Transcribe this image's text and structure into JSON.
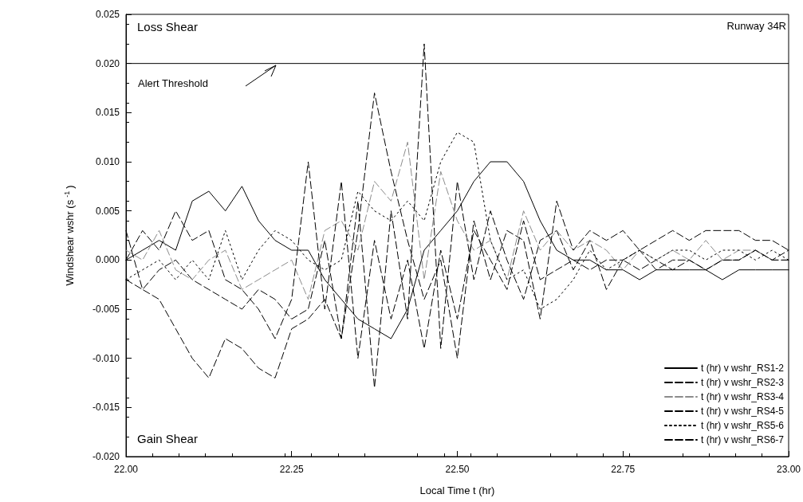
{
  "chart_data": {
    "type": "line",
    "xlabel": "Local Time t (hr)",
    "ylabel": "Windshear wshr (s$^{-1}$)",
    "x": [
      22.0,
      22.025,
      22.05,
      22.075,
      22.1,
      22.125,
      22.15,
      22.175,
      22.2,
      22.225,
      22.25,
      22.275,
      22.3,
      22.325,
      22.35,
      22.375,
      22.4,
      22.425,
      22.45,
      22.475,
      22.5,
      22.525,
      22.55,
      22.575,
      22.6,
      22.625,
      22.65,
      22.675,
      22.7,
      22.725,
      22.75,
      22.775,
      22.8,
      22.825,
      22.85,
      22.875,
      22.9,
      22.925,
      22.95,
      22.975,
      23.0
    ],
    "series": [
      {
        "name": "t (hr) v wshr_RS1-2",
        "color": "#000000",
        "line_style": "solid",
        "values": [
          0.0,
          0.001,
          0.002,
          0.001,
          0.006,
          0.007,
          0.005,
          0.0075,
          0.004,
          0.002,
          0.001,
          0.001,
          -0.002,
          -0.004,
          -0.006,
          -0.007,
          -0.008,
          -0.005,
          0.001,
          0.003,
          0.005,
          0.008,
          0.01,
          0.01,
          0.008,
          0.004,
          0.001,
          0.0,
          0.0,
          -0.001,
          -0.001,
          -0.002,
          -0.001,
          -0.001,
          -0.001,
          -0.001,
          -0.002,
          -0.001,
          -0.001,
          -0.001,
          -0.001
        ]
      },
      {
        "name": "t (hr) v wshr_RS2-3",
        "color": "#000000",
        "line_style": "dashed",
        "values": [
          -0.002,
          -0.003,
          -0.001,
          0.0,
          -0.002,
          -0.003,
          -0.004,
          -0.005,
          -0.003,
          -0.004,
          -0.006,
          -0.005,
          0.002,
          -0.008,
          0.006,
          -0.013,
          0.005,
          -0.006,
          0.022,
          -0.009,
          0.008,
          -0.002,
          0.005,
          0.0,
          -0.004,
          0.002,
          0.003,
          -0.001,
          0.002,
          -0.003,
          0.0,
          -0.001,
          0.0,
          -0.001,
          0.0,
          -0.001,
          0.0,
          0.0,
          0.001,
          0.0,
          0.001
        ]
      },
      {
        "name": "t (hr) v wshr_RS3-4",
        "color": "#8c8c8c",
        "line_style": "dashed",
        "values": [
          0.001,
          0.0,
          0.003,
          -0.001,
          -0.002,
          0.0,
          0.001,
          -0.003,
          -0.002,
          -0.001,
          0.0,
          -0.004,
          0.003,
          0.004,
          0.001,
          0.008,
          0.006,
          0.012,
          -0.002,
          0.009,
          0.004,
          0.001,
          0.002,
          -0.002,
          0.005,
          0.001,
          0.003,
          0.001,
          0.002,
          0.001,
          -0.001,
          0.001,
          0.0,
          0.001,
          0.0,
          0.002,
          0.0,
          0.001,
          0.001,
          0.0,
          0.0
        ]
      },
      {
        "name": "t (hr) v wshr_RS4-5",
        "color": "#000000",
        "line_style": "dashed",
        "values": [
          0.003,
          -0.003,
          -0.004,
          -0.007,
          -0.01,
          -0.012,
          -0.008,
          -0.009,
          -0.011,
          -0.012,
          -0.007,
          -0.006,
          -0.004,
          -0.008,
          0.003,
          0.017,
          0.009,
          0.002,
          -0.004,
          0.0,
          -0.01,
          0.004,
          -0.002,
          0.003,
          0.002,
          -0.006,
          0.006,
          0.001,
          0.003,
          0.002,
          0.003,
          0.001,
          0.002,
          0.003,
          0.002,
          0.003,
          0.003,
          0.003,
          0.002,
          0.002,
          0.001
        ]
      },
      {
        "name": "t (hr) v wshr_RS5-6",
        "color": "#000000",
        "line_style": "dotted",
        "values": [
          -0.002,
          -0.001,
          0.0,
          -0.002,
          0.0,
          -0.002,
          0.003,
          -0.002,
          0.001,
          0.003,
          0.002,
          0.0,
          -0.001,
          0.0,
          0.007,
          0.005,
          0.004,
          0.006,
          0.004,
          0.01,
          0.013,
          0.012,
          0.002,
          -0.002,
          -0.001,
          -0.005,
          -0.004,
          -0.002,
          0.001,
          -0.001,
          0.0,
          0.001,
          0.0,
          0.001,
          0.001,
          0.0,
          0.001,
          0.001,
          0.0,
          0.001,
          0.0
        ]
      },
      {
        "name": "t (hr) v wshr_RS6-7",
        "color": "#000000",
        "line_style": "dashed",
        "values": [
          0.0,
          0.003,
          0.001,
          0.005,
          0.002,
          0.003,
          -0.002,
          -0.003,
          -0.005,
          -0.008,
          -0.004,
          0.01,
          -0.005,
          0.008,
          -0.01,
          0.002,
          -0.006,
          0.0,
          -0.009,
          0.001,
          -0.006,
          0.003,
          0.0,
          -0.003,
          0.004,
          -0.002,
          -0.001,
          0.0,
          -0.001,
          0.0,
          0.0,
          0.001,
          -0.001,
          0.0,
          0.0,
          -0.001,
          0.0,
          0.0,
          0.001,
          0.0,
          0.0
        ]
      }
    ],
    "xlim": [
      22.0,
      23.0
    ],
    "xticks": [
      {
        "value": 22.0,
        "label": "22.00"
      },
      {
        "value": 22.25,
        "label": "22.25"
      },
      {
        "value": 22.5,
        "label": "22.50"
      },
      {
        "value": 22.75,
        "label": "22.75"
      },
      {
        "value": 23.0,
        "label": "23.00"
      }
    ],
    "ylim": [
      -0.02,
      0.025
    ],
    "yticks": [
      {
        "value": -0.02,
        "label": "-0.020"
      },
      {
        "value": -0.015,
        "label": "-0.015"
      },
      {
        "value": -0.01,
        "label": "-0.010"
      },
      {
        "value": -0.005,
        "label": "-0.005"
      },
      {
        "value": 0,
        "label": "0.000"
      },
      {
        "value": 0.005,
        "label": "0.005"
      },
      {
        "value": 0.01,
        "label": "0.010"
      },
      {
        "value": 0.015,
        "label": "0.015"
      },
      {
        "value": 0.02,
        "label": "0.020"
      },
      {
        "value": 0.025,
        "label": "0.025"
      }
    ],
    "ref_lines": [
      {
        "axis": "y",
        "value": 0.02,
        "label": "Alert Threshold",
        "color": "#000000",
        "line_style": "solid"
      }
    ],
    "annotations": [
      "Loss Shear",
      "Runway 34R",
      "Gain Shear"
    ],
    "grid": false,
    "legend": "bottom right",
    "marker": "none"
  }
}
